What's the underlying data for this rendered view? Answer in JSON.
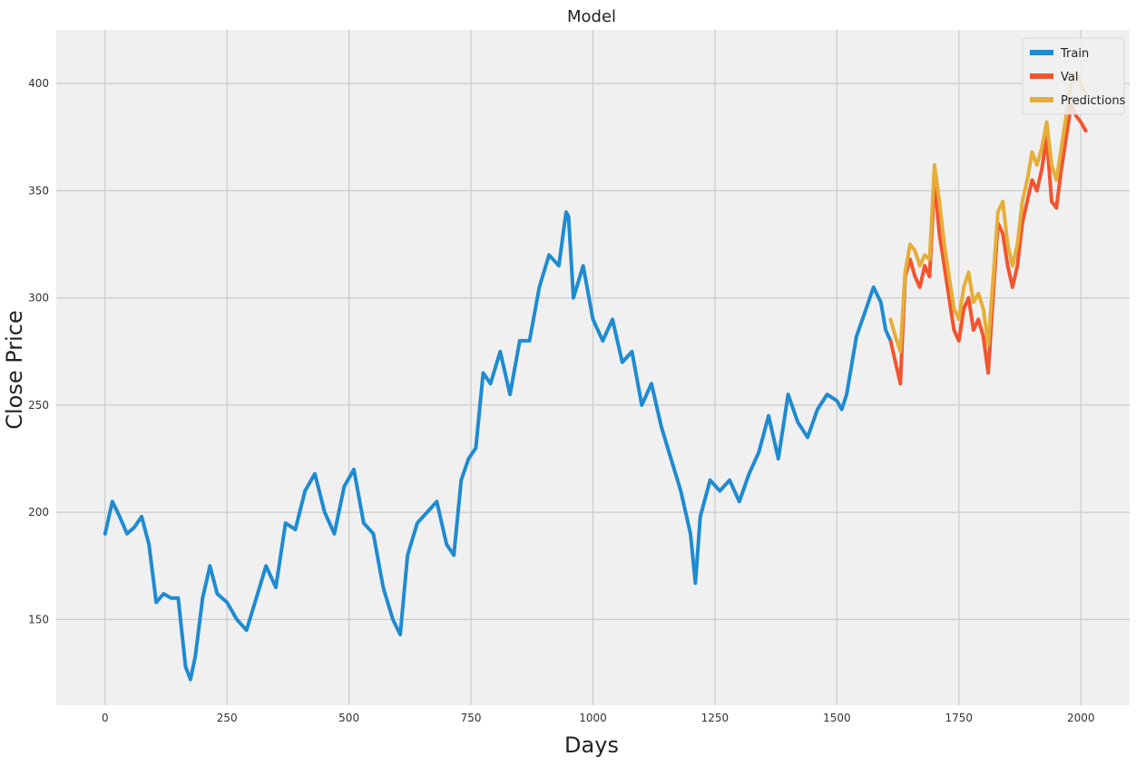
{
  "chart_data": {
    "type": "line",
    "title": "Model",
    "xlabel": "Days",
    "ylabel": "Close Price",
    "xlim": [
      -100,
      2100
    ],
    "ylim": [
      110,
      425
    ],
    "xticks": [
      0,
      250,
      500,
      750,
      1000,
      1250,
      1500,
      1750,
      2000
    ],
    "yticks": [
      150,
      200,
      250,
      300,
      350,
      400
    ],
    "grid": true,
    "legend": {
      "position": "top-right",
      "entries": [
        "Train",
        "Val",
        "Predictions"
      ]
    },
    "colors": {
      "Train": "#1f8bd1",
      "Val": "#f25430",
      "Predictions": "#e5ae38",
      "background": "#f0f0f0",
      "grid": "#cbcbcb"
    },
    "series": [
      {
        "name": "Train",
        "x": [
          0,
          15,
          30,
          45,
          60,
          75,
          90,
          105,
          120,
          135,
          150,
          165,
          175,
          185,
          200,
          215,
          230,
          250,
          270,
          290,
          310,
          330,
          350,
          370,
          390,
          410,
          430,
          450,
          470,
          490,
          510,
          530,
          550,
          570,
          590,
          605,
          620,
          640,
          660,
          680,
          700,
          715,
          730,
          745,
          760,
          775,
          790,
          810,
          830,
          850,
          870,
          890,
          910,
          930,
          945,
          950,
          960,
          980,
          1000,
          1020,
          1040,
          1060,
          1080,
          1100,
          1120,
          1140,
          1160,
          1180,
          1200,
          1210,
          1220,
          1240,
          1260,
          1280,
          1300,
          1320,
          1340,
          1360,
          1380,
          1400,
          1420,
          1440,
          1460,
          1480,
          1500,
          1510,
          1520,
          1540,
          1560,
          1575,
          1590,
          1600,
          1610
        ],
        "y": [
          190,
          205,
          198,
          190,
          193,
          198,
          185,
          158,
          162,
          160,
          160,
          128,
          122,
          133,
          160,
          175,
          162,
          158,
          150,
          145,
          160,
          175,
          165,
          195,
          192,
          210,
          218,
          200,
          190,
          212,
          220,
          195,
          190,
          165,
          150,
          143,
          180,
          195,
          200,
          205,
          185,
          180,
          215,
          225,
          230,
          265,
          260,
          275,
          255,
          280,
          280,
          305,
          320,
          315,
          340,
          338,
          300,
          315,
          290,
          280,
          290,
          270,
          275,
          250,
          260,
          240,
          225,
          210,
          190,
          167,
          198,
          215,
          210,
          215,
          205,
          218,
          228,
          245,
          225,
          255,
          242,
          235,
          248,
          255,
          252,
          248,
          255,
          282,
          295,
          305,
          298,
          285,
          280
        ]
      },
      {
        "name": "Val",
        "x": [
          1610,
          1620,
          1630,
          1640,
          1650,
          1660,
          1670,
          1680,
          1690,
          1700,
          1710,
          1720,
          1730,
          1740,
          1750,
          1760,
          1770,
          1780,
          1790,
          1800,
          1810,
          1820,
          1830,
          1840,
          1850,
          1860,
          1870,
          1880,
          1890,
          1900,
          1910,
          1920,
          1930,
          1940,
          1950,
          1960,
          1970,
          1980,
          1990,
          2000,
          2010
        ],
        "y": [
          280,
          270,
          260,
          310,
          318,
          310,
          305,
          315,
          310,
          355,
          330,
          315,
          300,
          285,
          280,
          295,
          300,
          285,
          290,
          282,
          265,
          300,
          335,
          330,
          315,
          305,
          315,
          335,
          345,
          355,
          350,
          360,
          375,
          345,
          342,
          360,
          375,
          390,
          385,
          382,
          378
        ]
      },
      {
        "name": "Predictions",
        "x": [
          1610,
          1620,
          1630,
          1640,
          1650,
          1660,
          1670,
          1680,
          1690,
          1700,
          1710,
          1720,
          1730,
          1740,
          1750,
          1760,
          1770,
          1780,
          1790,
          1800,
          1810,
          1820,
          1830,
          1840,
          1850,
          1860,
          1870,
          1880,
          1890,
          1900,
          1910,
          1920,
          1930,
          1940,
          1950,
          1960,
          1970,
          1980,
          1990,
          2000,
          2010
        ],
        "y": [
          290,
          282,
          275,
          312,
          325,
          322,
          315,
          320,
          318,
          362,
          345,
          325,
          310,
          295,
          290,
          305,
          312,
          298,
          302,
          295,
          278,
          308,
          340,
          345,
          325,
          315,
          325,
          345,
          355,
          368,
          362,
          370,
          382,
          362,
          355,
          370,
          385,
          400,
          405,
          400,
          395
        ]
      }
    ]
  }
}
